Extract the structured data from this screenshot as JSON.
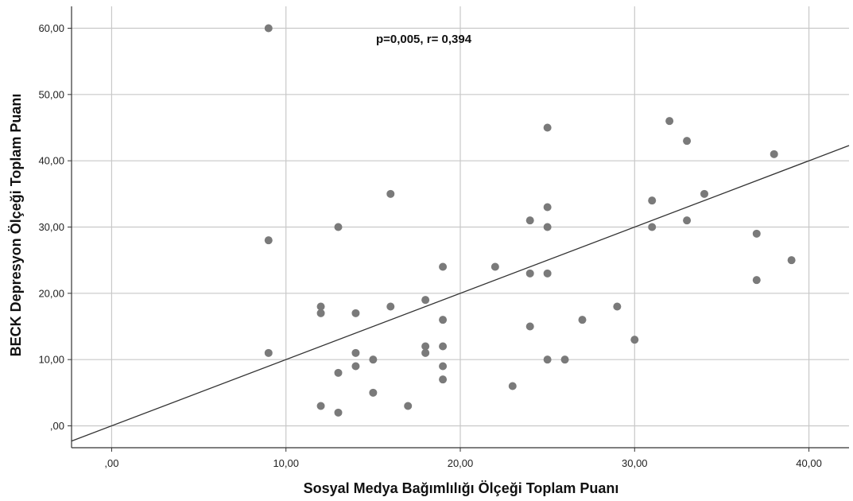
{
  "chart_data": {
    "type": "scatter",
    "title": "",
    "xlabel": "Sosyal Medya Bağımlılığı Ölçeği Toplam Puanı",
    "ylabel": "BECK Depresyon Ölçeği Toplam Puanı",
    "xlim": [
      -2.3,
      42.3
    ],
    "ylim": [
      -3.3,
      63.3
    ],
    "x_ticks": [
      0,
      10,
      20,
      30,
      40
    ],
    "x_tick_labels": [
      ",00",
      "10,00",
      "20,00",
      "30,00",
      "40,00"
    ],
    "y_ticks": [
      0,
      10,
      20,
      30,
      40,
      50,
      60
    ],
    "y_tick_labels": [
      ",00",
      "10,00",
      "20,00",
      "30,00",
      "40,00",
      "50,00",
      "60,00"
    ],
    "grid": true,
    "annotation": "p=0,005, r= 0,394",
    "reference_line": {
      "from": [
        -2.3,
        -2.3
      ],
      "to": [
        42.3,
        42.3
      ]
    },
    "points": [
      {
        "x": 9,
        "y": 60
      },
      {
        "x": 9,
        "y": 28
      },
      {
        "x": 9,
        "y": 11
      },
      {
        "x": 12,
        "y": 18
      },
      {
        "x": 12,
        "y": 17
      },
      {
        "x": 12,
        "y": 3
      },
      {
        "x": 13,
        "y": 30
      },
      {
        "x": 13,
        "y": 8
      },
      {
        "x": 13,
        "y": 2
      },
      {
        "x": 14,
        "y": 17
      },
      {
        "x": 14,
        "y": 11
      },
      {
        "x": 14,
        "y": 9
      },
      {
        "x": 15,
        "y": 10
      },
      {
        "x": 15,
        "y": 5
      },
      {
        "x": 16,
        "y": 35
      },
      {
        "x": 16,
        "y": 18
      },
      {
        "x": 17,
        "y": 3
      },
      {
        "x": 18,
        "y": 19
      },
      {
        "x": 18,
        "y": 12
      },
      {
        "x": 18,
        "y": 11
      },
      {
        "x": 19,
        "y": 24
      },
      {
        "x": 19,
        "y": 16
      },
      {
        "x": 19,
        "y": 12
      },
      {
        "x": 19,
        "y": 9
      },
      {
        "x": 19,
        "y": 7
      },
      {
        "x": 22,
        "y": 24
      },
      {
        "x": 23,
        "y": 6
      },
      {
        "x": 24,
        "y": 31
      },
      {
        "x": 24,
        "y": 23
      },
      {
        "x": 24,
        "y": 15
      },
      {
        "x": 25,
        "y": 45
      },
      {
        "x": 25,
        "y": 33
      },
      {
        "x": 25,
        "y": 30
      },
      {
        "x": 25,
        "y": 23
      },
      {
        "x": 25,
        "y": 10
      },
      {
        "x": 26,
        "y": 10
      },
      {
        "x": 27,
        "y": 16
      },
      {
        "x": 29,
        "y": 18
      },
      {
        "x": 30,
        "y": 13
      },
      {
        "x": 31,
        "y": 34
      },
      {
        "x": 31,
        "y": 30
      },
      {
        "x": 32,
        "y": 46
      },
      {
        "x": 33,
        "y": 43
      },
      {
        "x": 33,
        "y": 31
      },
      {
        "x": 34,
        "y": 35
      },
      {
        "x": 37,
        "y": 29
      },
      {
        "x": 37,
        "y": 22
      },
      {
        "x": 38,
        "y": 41
      },
      {
        "x": 39,
        "y": 25
      }
    ],
    "marker_color": "#7a7a7a",
    "line_color": "#333333",
    "grid_color": "#c8c8c8"
  }
}
